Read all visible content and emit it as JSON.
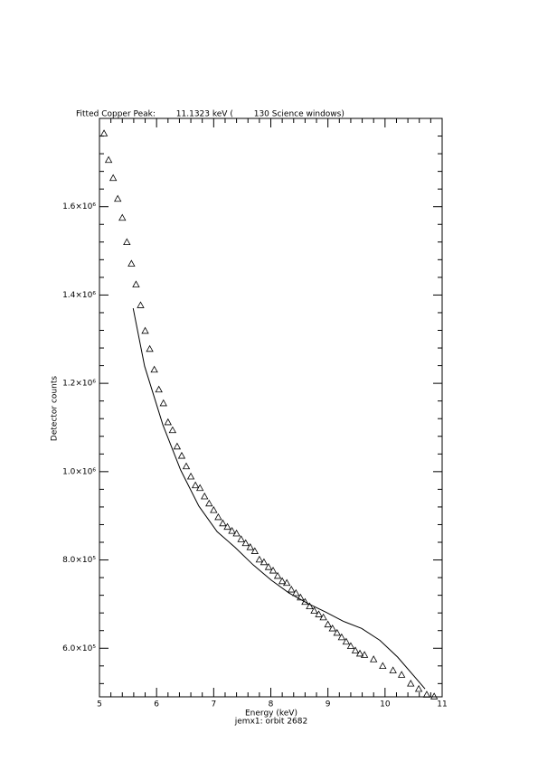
{
  "chart_data": {
    "type": "scatter",
    "title": "Fitted Copper Peak:        11.1323 keV (        130 Science windows)",
    "x_label": "Energy (keV)",
    "y_label": "Detector counts",
    "subtitle": "jemx1: orbit 2682",
    "xlim": [
      5,
      11
    ],
    "xticks": [
      5,
      6,
      7,
      8,
      9,
      10,
      11
    ],
    "ylim": [
      490000,
      1800000
    ],
    "yticks": [
      {
        "value": 600000,
        "label": "6.0×10⁵"
      },
      {
        "value": 800000,
        "label": "8.0×10⁵"
      },
      {
        "value": 1000000,
        "label": "1.0×10⁶"
      },
      {
        "value": 1200000,
        "label": "1.2×10⁶"
      },
      {
        "value": 1400000,
        "label": "1.4×10⁶"
      },
      {
        "value": 1600000,
        "label": "1.6×10⁶"
      }
    ],
    "minor_ticks_per_major": 5,
    "series": [
      {
        "mode": "markers",
        "marker": "triangle",
        "color": "#000000",
        "x": [
          5.08,
          5.16,
          5.24,
          5.32,
          5.4,
          5.48,
          5.56,
          5.64,
          5.72,
          5.8,
          5.88,
          5.96,
          6.04,
          6.12,
          6.2,
          6.28,
          6.36,
          6.44,
          6.52,
          6.6,
          6.68,
          6.76,
          6.84,
          6.92,
          7.0,
          7.08,
          7.16,
          7.24,
          7.32,
          7.4,
          7.48,
          7.56,
          7.64,
          7.72,
          7.8,
          7.88,
          7.96,
          8.04,
          8.12,
          8.2,
          8.28,
          8.36,
          8.44,
          8.52,
          8.6,
          8.68,
          8.76,
          8.84,
          8.92,
          9.0,
          9.08,
          9.16,
          9.24,
          9.32,
          9.4,
          9.48,
          9.56,
          9.64,
          9.8,
          9.96,
          10.14,
          10.29,
          10.45,
          10.59,
          10.73,
          10.86
        ],
        "values": [
          1766000,
          1706000,
          1665000,
          1618000,
          1575000,
          1520000,
          1471000,
          1424000,
          1377000,
          1319000,
          1278000,
          1231000,
          1186000,
          1155000,
          1112000,
          1094000,
          1057000,
          1036000,
          1012000,
          989000,
          969000,
          963000,
          944000,
          928000,
          913000,
          897000,
          883000,
          875000,
          866000,
          860000,
          847000,
          838000,
          829000,
          820000,
          801000,
          795000,
          784000,
          776000,
          764000,
          752000,
          748000,
          733000,
          725000,
          715000,
          705000,
          695000,
          685000,
          677000,
          670000,
          654000,
          645000,
          635000,
          625000,
          615000,
          605000,
          595000,
          588000,
          585000,
          575000,
          560000,
          550000,
          540000,
          520000,
          508000,
          495000,
          491000
        ]
      },
      {
        "mode": "line",
        "color": "#000000",
        "x": [
          5.59,
          5.79,
          6.11,
          6.42,
          6.74,
          7.06,
          7.37,
          7.69,
          8.01,
          8.32,
          8.64,
          8.96,
          9.27,
          9.59,
          9.91,
          10.22,
          10.54,
          10.7
        ],
        "values": [
          1370000,
          1239000,
          1106000,
          1004000,
          922000,
          864000,
          829000,
          789000,
          754000,
          725000,
          702000,
          682000,
          661000,
          645000,
          618000,
          580000,
          532000,
          508000
        ]
      }
    ]
  }
}
